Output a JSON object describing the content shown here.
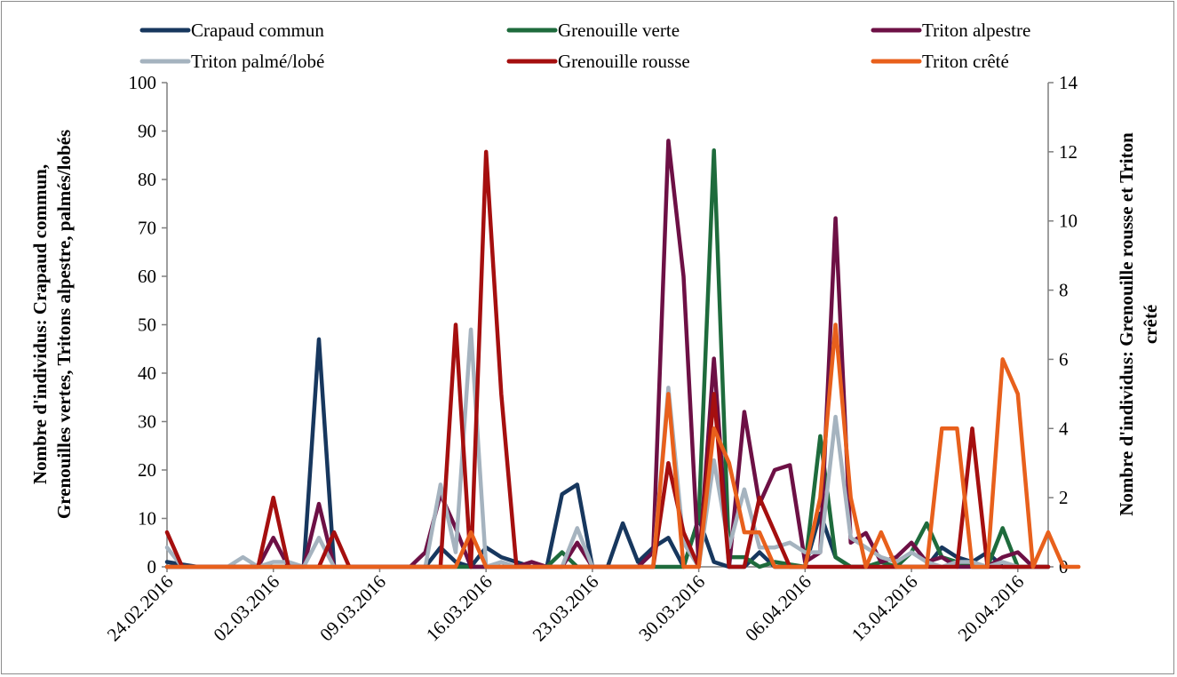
{
  "chart_data": {
    "type": "line",
    "title": "",
    "ylabel_left": [
      "Nombre d'individus: Crapaud commun,",
      "Grenouilles vertes, Tritons alpestre, palmés/lobés"
    ],
    "ylabel_right": [
      "Nombre d'individus: Grenouille rousse et Triton",
      "crêté"
    ],
    "ylim_left": [
      0,
      100
    ],
    "ylim_right": [
      0,
      14
    ],
    "yticks_left": [
      "0",
      "10",
      "20",
      "30",
      "40",
      "50",
      "60",
      "70",
      "80",
      "90",
      "100"
    ],
    "yticks_right": [
      "0",
      "2",
      "4",
      "6",
      "8",
      "10",
      "12",
      "14"
    ],
    "x_start": "24.02.2016",
    "x_end": "22.04.2016",
    "xticks": [
      "24.02.2016",
      "02.03.2016",
      "09.03.2016",
      "16.03.2016",
      "23.03.2016",
      "30.03.2016",
      "06.04.2016",
      "13.04.2016",
      "20.04.2016"
    ],
    "grid": false,
    "legend_position": "top",
    "series": [
      {
        "name": "Crapaud commun",
        "color": "#17375e",
        "axis": "left",
        "points": [
          [
            "24.02.2016",
            1
          ],
          [
            "25.02.2016",
            0.5
          ],
          [
            "26.02.2016",
            0
          ],
          [
            "01.03.2016",
            0
          ],
          [
            "04.03.2016",
            0
          ],
          [
            "05.03.2016",
            47
          ],
          [
            "06.03.2016",
            0
          ],
          [
            "12.03.2016",
            0
          ],
          [
            "13.03.2016",
            4
          ],
          [
            "14.03.2016",
            1
          ],
          [
            "15.03.2016",
            0
          ],
          [
            "16.03.2016",
            4
          ],
          [
            "17.03.2016",
            2
          ],
          [
            "19.03.2016",
            0
          ],
          [
            "20.03.2016",
            0
          ],
          [
            "21.03.2016",
            15
          ],
          [
            "22.03.2016",
            17
          ],
          [
            "23.03.2016",
            0
          ],
          [
            "24.03.2016",
            0
          ],
          [
            "25.03.2016",
            9
          ],
          [
            "26.03.2016",
            1
          ],
          [
            "27.03.2016",
            4
          ],
          [
            "28.03.2016",
            6
          ],
          [
            "29.03.2016",
            0
          ],
          [
            "30.03.2016",
            10
          ],
          [
            "31.03.2016",
            1
          ],
          [
            "01.04.2016",
            0
          ],
          [
            "02.04.2016",
            0
          ],
          [
            "03.04.2016",
            3
          ],
          [
            "04.04.2016",
            0
          ],
          [
            "05.04.2016",
            0
          ],
          [
            "06.04.2016",
            0
          ],
          [
            "07.04.2016",
            11
          ],
          [
            "08.04.2016",
            2
          ],
          [
            "09.04.2016",
            0
          ],
          [
            "14.04.2016",
            0
          ],
          [
            "15.04.2016",
            4
          ],
          [
            "16.04.2016",
            2
          ],
          [
            "17.04.2016",
            1
          ],
          [
            "18.04.2016",
            3
          ],
          [
            "19.04.2016",
            0
          ],
          [
            "22.04.2016",
            0
          ]
        ]
      },
      {
        "name": "Grenouille verte",
        "color": "#1e6b3c",
        "axis": "left",
        "points": [
          [
            "24.02.2016",
            0
          ],
          [
            "20.03.2016",
            0
          ],
          [
            "21.03.2016",
            3
          ],
          [
            "22.03.2016",
            0
          ],
          [
            "29.03.2016",
            0
          ],
          [
            "30.03.2016",
            10
          ],
          [
            "31.03.2016",
            86
          ],
          [
            "01.04.2016",
            2
          ],
          [
            "02.04.2016",
            2
          ],
          [
            "03.04.2016",
            0
          ],
          [
            "04.04.2016",
            1
          ],
          [
            "06.04.2016",
            0
          ],
          [
            "07.04.2016",
            27
          ],
          [
            "08.04.2016",
            2
          ],
          [
            "09.04.2016",
            0
          ],
          [
            "10.04.2016",
            0
          ],
          [
            "11.04.2016",
            1
          ],
          [
            "12.04.2016",
            0
          ],
          [
            "13.04.2016",
            3
          ],
          [
            "14.04.2016",
            9
          ],
          [
            "15.04.2016",
            2
          ],
          [
            "16.04.2016",
            1
          ],
          [
            "17.04.2016",
            0
          ],
          [
            "18.04.2016",
            0
          ],
          [
            "19.04.2016",
            8
          ],
          [
            "20.04.2016",
            0
          ],
          [
            "22.04.2016",
            0
          ]
        ]
      },
      {
        "name": "Triton alpestre",
        "color": "#6d1045",
        "axis": "left",
        "points": [
          [
            "24.02.2016",
            0
          ],
          [
            "29.02.2016",
            0
          ],
          [
            "01.03.2016",
            0
          ],
          [
            "02.03.2016",
            6
          ],
          [
            "03.03.2016",
            0
          ],
          [
            "04.03.2016",
            0
          ],
          [
            "05.03.2016",
            13
          ],
          [
            "06.03.2016",
            0
          ],
          [
            "11.03.2016",
            0
          ],
          [
            "12.03.2016",
            3
          ],
          [
            "13.03.2016",
            15
          ],
          [
            "14.03.2016",
            8
          ],
          [
            "15.03.2016",
            0
          ],
          [
            "16.03.2016",
            0
          ],
          [
            "17.03.2016",
            0
          ],
          [
            "18.03.2016",
            0
          ],
          [
            "19.03.2016",
            1
          ],
          [
            "20.03.2016",
            0
          ],
          [
            "21.03.2016",
            0
          ],
          [
            "22.03.2016",
            5
          ],
          [
            "23.03.2016",
            0
          ],
          [
            "26.03.2016",
            0
          ],
          [
            "27.03.2016",
            3
          ],
          [
            "28.03.2016",
            88
          ],
          [
            "29.03.2016",
            60
          ],
          [
            "30.03.2016",
            0
          ],
          [
            "31.03.2016",
            43
          ],
          [
            "01.04.2016",
            0
          ],
          [
            "02.04.2016",
            32
          ],
          [
            "03.04.2016",
            13
          ],
          [
            "04.04.2016",
            20
          ],
          [
            "05.04.2016",
            21
          ],
          [
            "06.04.2016",
            1
          ],
          [
            "07.04.2016",
            3
          ],
          [
            "08.04.2016",
            72
          ],
          [
            "09.04.2016",
            5
          ],
          [
            "10.04.2016",
            7
          ],
          [
            "11.04.2016",
            1
          ],
          [
            "12.04.2016",
            2
          ],
          [
            "13.04.2016",
            5
          ],
          [
            "14.04.2016",
            1
          ],
          [
            "15.04.2016",
            2
          ],
          [
            "16.04.2016",
            0
          ],
          [
            "17.04.2016",
            0
          ],
          [
            "18.04.2016",
            0
          ],
          [
            "19.04.2016",
            2
          ],
          [
            "20.04.2016",
            3
          ],
          [
            "21.04.2016",
            0
          ],
          [
            "22.04.2016",
            0
          ]
        ]
      },
      {
        "name": "Triton palmé/lobé",
        "color": "#a5b3bf",
        "axis": "left",
        "points": [
          [
            "24.02.2016",
            4
          ],
          [
            "25.02.2016",
            0
          ],
          [
            "28.02.2016",
            0
          ],
          [
            "29.02.2016",
            2
          ],
          [
            "01.03.2016",
            0
          ],
          [
            "02.03.2016",
            1
          ],
          [
            "03.03.2016",
            1
          ],
          [
            "04.03.2016",
            0
          ],
          [
            "05.03.2016",
            6
          ],
          [
            "06.03.2016",
            0
          ],
          [
            "12.03.2016",
            0
          ],
          [
            "13.03.2016",
            17
          ],
          [
            "14.03.2016",
            3
          ],
          [
            "15.03.2016",
            49
          ],
          [
            "16.03.2016",
            0
          ],
          [
            "17.03.2016",
            1
          ],
          [
            "18.03.2016",
            0
          ],
          [
            "20.03.2016",
            0
          ],
          [
            "21.03.2016",
            0
          ],
          [
            "22.03.2016",
            8
          ],
          [
            "23.03.2016",
            0
          ],
          [
            "27.03.2016",
            0
          ],
          [
            "28.03.2016",
            37
          ],
          [
            "29.03.2016",
            5
          ],
          [
            "30.03.2016",
            0
          ],
          [
            "31.03.2016",
            22
          ],
          [
            "01.04.2016",
            4
          ],
          [
            "02.04.2016",
            16
          ],
          [
            "03.04.2016",
            4
          ],
          [
            "04.04.2016",
            4
          ],
          [
            "05.04.2016",
            5
          ],
          [
            "06.04.2016",
            3
          ],
          [
            "07.04.2016",
            3
          ],
          [
            "08.04.2016",
            31
          ],
          [
            "09.04.2016",
            6
          ],
          [
            "10.04.2016",
            4
          ],
          [
            "11.04.2016",
            2
          ],
          [
            "12.04.2016",
            1
          ],
          [
            "13.04.2016",
            3
          ],
          [
            "14.04.2016",
            1
          ],
          [
            "15.04.2016",
            0
          ],
          [
            "16.04.2016",
            1
          ],
          [
            "17.04.2016",
            1
          ],
          [
            "18.04.2016",
            0
          ],
          [
            "19.04.2016",
            1
          ],
          [
            "20.04.2016",
            0
          ],
          [
            "22.04.2016",
            0
          ]
        ]
      },
      {
        "name": "Grenouille rousse",
        "color": "#a50f0f",
        "axis": "right",
        "points": [
          [
            "24.02.2016",
            1
          ],
          [
            "25.02.2016",
            0
          ],
          [
            "01.03.2016",
            0
          ],
          [
            "02.03.2016",
            2
          ],
          [
            "03.03.2016",
            0
          ],
          [
            "05.03.2016",
            0
          ],
          [
            "06.03.2016",
            1
          ],
          [
            "07.03.2016",
            0
          ],
          [
            "13.03.2016",
            0
          ],
          [
            "14.03.2016",
            7
          ],
          [
            "15.03.2016",
            0
          ],
          [
            "16.03.2016",
            12
          ],
          [
            "17.03.2016",
            5
          ],
          [
            "18.03.2016",
            0
          ],
          [
            "27.03.2016",
            0
          ],
          [
            "28.03.2016",
            3
          ],
          [
            "29.03.2016",
            1
          ],
          [
            "30.03.2016",
            0
          ],
          [
            "31.03.2016",
            5
          ],
          [
            "01.04.2016",
            0
          ],
          [
            "02.04.2016",
            0
          ],
          [
            "03.04.2016",
            2
          ],
          [
            "04.04.2016",
            1
          ],
          [
            "05.04.2016",
            0
          ],
          [
            "06.04.2016",
            0
          ],
          [
            "07.04.2016",
            0
          ],
          [
            "08.04.2016",
            0
          ],
          [
            "16.04.2016",
            0
          ],
          [
            "17.04.2016",
            4
          ],
          [
            "18.04.2016",
            0
          ],
          [
            "19.04.2016",
            0
          ],
          [
            "20.04.2016",
            0
          ],
          [
            "22.04.2016",
            0
          ]
        ]
      },
      {
        "name": "Triton crêté",
        "color": "#e8601c",
        "axis": "right",
        "points": [
          [
            "24.02.2016",
            0
          ],
          [
            "14.03.2016",
            0
          ],
          [
            "15.03.2016",
            1
          ],
          [
            "16.03.2016",
            0
          ],
          [
            "27.03.2016",
            0
          ],
          [
            "28.03.2016",
            5
          ],
          [
            "29.03.2016",
            0
          ],
          [
            "30.03.2016",
            0
          ],
          [
            "31.03.2016",
            4
          ],
          [
            "01.04.2016",
            3
          ],
          [
            "02.04.2016",
            1
          ],
          [
            "03.04.2016",
            1
          ],
          [
            "04.04.2016",
            0
          ],
          [
            "06.04.2016",
            0
          ],
          [
            "07.04.2016",
            2
          ],
          [
            "08.04.2016",
            7
          ],
          [
            "09.04.2016",
            2
          ],
          [
            "10.04.2016",
            0
          ],
          [
            "11.04.2016",
            1
          ],
          [
            "12.04.2016",
            0
          ],
          [
            "13.04.2016",
            0
          ],
          [
            "14.04.2016",
            0
          ],
          [
            "15.04.2016",
            4
          ],
          [
            "16.04.2016",
            4
          ],
          [
            "17.04.2016",
            0
          ],
          [
            "18.04.2016",
            0
          ],
          [
            "19.04.2016",
            6
          ],
          [
            "20.04.2016",
            5
          ],
          [
            "21.04.2016",
            0
          ],
          [
            "22.04.2016",
            1
          ],
          [
            "23.04.2016",
            0
          ],
          [
            "24.04.2016",
            0
          ]
        ]
      }
    ]
  }
}
